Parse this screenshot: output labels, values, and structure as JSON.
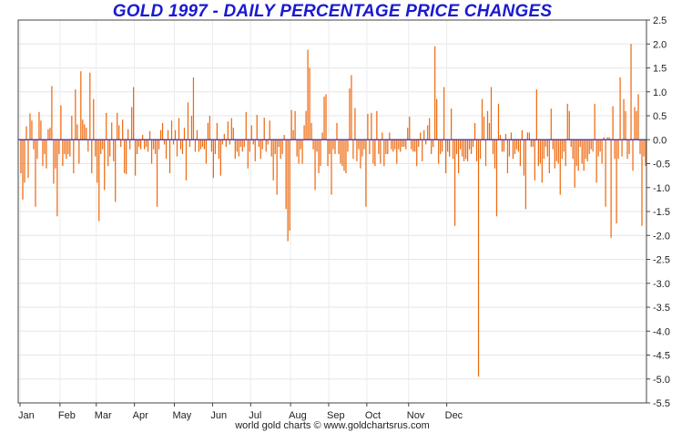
{
  "chart_data": {
    "type": "bar",
    "title": "GOLD 1997 - DAILY PERCENTAGE PRICE CHANGES",
    "xlabel": "",
    "ylabel": "",
    "ylim": [
      -5.5,
      2.5
    ],
    "y_ticks": [
      "2.5",
      "2.0",
      "1.5",
      "1.0",
      "0.5",
      "0.0",
      "-0.5",
      "-1.0",
      "-1.5",
      "-2.0",
      "-2.5",
      "-3.0",
      "-3.5",
      "-4.0",
      "-4.5",
      "-5.0",
      "-5.5"
    ],
    "x_tick_labels": [
      "Jan",
      "Feb",
      "Mar",
      "Apr",
      "May",
      "Jun",
      "Jul",
      "Aug",
      "Sep",
      "Oct",
      "Nov",
      "Dec"
    ],
    "grid": true,
    "bar_color": "#ee6a10",
    "zero_line_color": "#2a2acc",
    "series": [
      {
        "values": [
          -0.7,
          -1.25,
          -0.9,
          0.28,
          -0.8,
          0.55,
          0.4,
          -0.2,
          -1.4,
          -0.4,
          0.58,
          0.4,
          -0.55,
          -0.3,
          -0.6,
          0.22,
          0.25,
          1.12,
          -0.92,
          -0.6,
          -1.6,
          -0.3,
          0.72,
          -0.55,
          -0.3,
          -0.4,
          -0.3,
          -0.35,
          0.5,
          -0.7,
          1.05,
          0.32,
          -0.5,
          1.43,
          0.42,
          0.32,
          0.25,
          -0.25,
          1.4,
          -0.7,
          0.85,
          -0.35,
          -0.9,
          -1.7,
          -0.3,
          -0.2,
          -1.05,
          0.56,
          -0.55,
          -0.35,
          0.36,
          -0.45,
          -1.3,
          0.56,
          0.3,
          -0.15,
          0.42,
          -0.7,
          -0.72,
          0.22,
          -0.2,
          0.68,
          1.1,
          -0.75,
          -0.3,
          -0.15,
          -0.2,
          0.1,
          -0.2,
          -0.15,
          -0.25,
          0.18,
          -0.5,
          -0.2,
          -0.3,
          -1.4,
          -0.2,
          0.2,
          0.35,
          -0.1,
          -0.4,
          0.2,
          -0.7,
          0.4,
          -0.1,
          0.2,
          -0.35,
          0.45,
          -0.2,
          -0.3,
          0.25,
          -0.85,
          0.78,
          -0.15,
          0.5,
          1.3,
          -0.25,
          0.2,
          -0.25,
          -0.2,
          -0.15,
          -0.2,
          -0.5,
          0.35,
          0.5,
          -0.25,
          -0.8,
          -0.3,
          0.35,
          -0.4,
          -0.75,
          -0.1,
          0.12,
          -0.15,
          0.38,
          -0.1,
          0.45,
          0.25,
          -0.4,
          -0.25,
          -0.35,
          -0.15,
          -0.25,
          -0.15,
          0.58,
          -0.6,
          -0.25,
          0.3,
          -0.1,
          -0.45,
          0.52,
          -0.15,
          -0.4,
          -0.2,
          0.46,
          -0.25,
          -0.1,
          0.4,
          -0.35,
          -0.85,
          -0.3,
          -1.15,
          -0.15,
          -0.4,
          -0.3,
          0.1,
          -1.45,
          -2.12,
          -1.9,
          0.62,
          0.2,
          0.6,
          -0.35,
          -0.5,
          -0.2,
          -0.5,
          0.3,
          0.6,
          1.88,
          1.5,
          0.35,
          -0.2,
          -1.05,
          -0.25,
          -0.7,
          -0.55,
          0.15,
          0.9,
          0.95,
          -0.55,
          -0.3,
          -1.15,
          -0.2,
          -0.3,
          0.35,
          -0.3,
          -0.5,
          -0.55,
          -0.65,
          -0.7,
          -0.25,
          1.07,
          1.35,
          -0.4,
          0.66,
          -0.45,
          -0.2,
          -0.6,
          -0.35,
          -0.2,
          -1.4,
          0.54,
          -0.3,
          0.56,
          -0.5,
          -0.55,
          0.6,
          -0.3,
          -0.5,
          0.15,
          -0.55,
          -0.3,
          -0.3,
          0.15,
          -0.2,
          -0.25,
          -0.2,
          -0.5,
          -0.2,
          -0.25,
          -0.15,
          -0.15,
          -0.2,
          0.25,
          0.48,
          -0.2,
          -0.25,
          -0.25,
          -0.55,
          -0.15,
          0.15,
          -0.45,
          0.2,
          -0.1,
          0.3,
          0.45,
          -0.3,
          -0.15,
          1.95,
          0.85,
          -0.5,
          -0.3,
          -0.25,
          1.1,
          -0.7,
          -0.25,
          -0.35,
          0.65,
          -0.4,
          -1.8,
          -0.3,
          -0.7,
          -0.2,
          -0.35,
          -0.45,
          -0.4,
          -0.45,
          -0.2,
          -0.3,
          -0.15,
          0.35,
          -0.45,
          -4.95,
          -0.4,
          0.85,
          0.48,
          -0.55,
          0.6,
          0.35,
          1.1,
          -0.3,
          -0.6,
          -1.6,
          0.75,
          0.1,
          -0.25,
          -0.25,
          0.12,
          -0.7,
          -0.35,
          0.15,
          -0.4,
          -0.3,
          -0.2,
          -0.25,
          -0.55,
          0.2,
          -0.75,
          -1.45,
          0.15,
          0.15,
          -0.15,
          -0.15,
          -0.85,
          1.05,
          -0.55,
          -0.5,
          -0.9,
          -0.4,
          -0.15,
          -0.35,
          -0.7,
          0.65,
          -0.2,
          -0.6,
          -0.45,
          -0.5,
          -1.15,
          -0.4,
          -0.25,
          -0.55,
          0.75,
          0.6,
          -0.15,
          -0.4,
          -1.0,
          -0.55,
          -0.65,
          -0.15,
          -0.5,
          -0.65,
          -0.4,
          -0.45,
          -0.3,
          -0.2,
          -0.25,
          0.75,
          -0.9,
          -0.35,
          -0.25,
          -0.5,
          0.05,
          -1.4,
          0.05,
          0.05,
          -2.05,
          0.7,
          -0.4,
          -1.75,
          -0.4,
          1.3,
          -0.35,
          0.85,
          0.6,
          -0.4,
          -0.3,
          2.0,
          -0.65,
          0.68,
          0.6,
          0.95,
          -0.3,
          -1.8,
          -0.35,
          -0.55
        ]
      }
    ]
  },
  "footer": "world gold charts © www.goldchartsrus.com"
}
